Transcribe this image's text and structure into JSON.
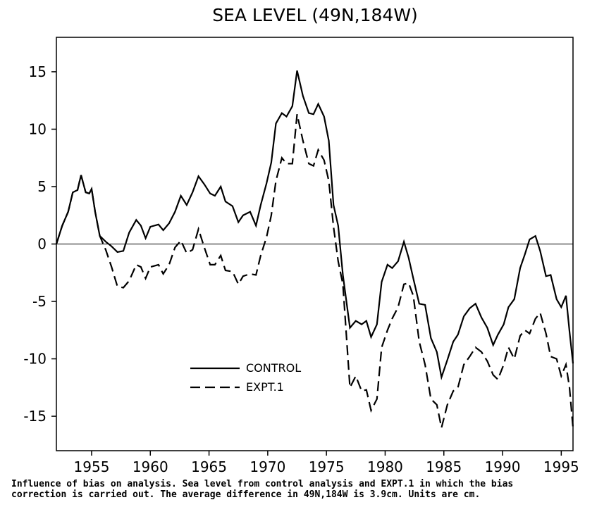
{
  "chart_data": {
    "type": "line",
    "title": "SEA LEVEL (49N,184W)",
    "caption": [
      "Influence of bias on analysis. Sea level from control analysis and EXPT.1 in which the bias",
      "correction is carried out. The average difference in 49N,184W is 3.9cm. Units are cm."
    ],
    "x": [
      1952.0,
      1952.5,
      1953.0,
      1953.4,
      1953.8,
      1954.1,
      1954.5,
      1954.8,
      1955.0,
      1955.3,
      1955.7,
      1956.2,
      1956.7,
      1957.2,
      1957.7,
      1958.2,
      1958.8,
      1959.2,
      1959.6,
      1960.0,
      1960.7,
      1961.1,
      1961.6,
      1962.1,
      1962.6,
      1963.1,
      1963.6,
      1964.1,
      1964.6,
      1965.1,
      1965.5,
      1966.0,
      1966.4,
      1967.0,
      1967.5,
      1967.9,
      1968.5,
      1969.0,
      1969.4,
      1969.9,
      1970.3,
      1970.7,
      1971.2,
      1971.6,
      1972.1,
      1972.5,
      1973.0,
      1973.5,
      1973.9,
      1974.3,
      1974.8,
      1975.2,
      1975.6,
      1976.0,
      1976.4,
      1977.0,
      1977.5,
      1978.0,
      1978.4,
      1978.8,
      1979.3,
      1979.7,
      1980.2,
      1980.6,
      1981.1,
      1981.6,
      1982.0,
      1982.4,
      1982.9,
      1983.4,
      1983.9,
      1984.4,
      1984.8,
      1985.3,
      1985.8,
      1986.2,
      1986.7,
      1987.2,
      1987.7,
      1988.2,
      1988.7,
      1989.2,
      1989.6,
      1990.1,
      1990.5,
      1991.0,
      1991.5,
      1991.9,
      1992.3,
      1992.8,
      1993.2,
      1993.7,
      1994.1,
      1994.6,
      1995.0,
      1995.4,
      1995.7,
      1996.0
    ],
    "series": [
      {
        "name": "CONTROL",
        "color": "#000000",
        "line_style": "solid",
        "values": [
          0,
          1.6,
          2.8,
          4.5,
          4.7,
          6.0,
          4.5,
          4.4,
          4.8,
          2.8,
          0.7,
          0.2,
          -0.2,
          -0.7,
          -0.6,
          1.0,
          2.1,
          1.6,
          0.5,
          1.5,
          1.7,
          1.2,
          1.8,
          2.8,
          4.2,
          3.4,
          4.5,
          5.9,
          5.2,
          4.4,
          4.2,
          5.0,
          3.7,
          3.3,
          1.9,
          2.5,
          2.8,
          1.6,
          3.4,
          5.3,
          7.1,
          10.5,
          11.4,
          11.1,
          12.0,
          15.1,
          12.9,
          11.4,
          11.3,
          12.2,
          11.1,
          9.0,
          3.4,
          1.6,
          -2.7,
          -7.3,
          -6.7,
          -7.0,
          -6.7,
          -8.1,
          -7.0,
          -3.3,
          -1.8,
          -2.1,
          -1.5,
          0.2,
          -1.2,
          -3.0,
          -5.2,
          -5.3,
          -8.2,
          -9.4,
          -11.6,
          -10.1,
          -8.5,
          -7.9,
          -6.3,
          -5.6,
          -5.2,
          -6.4,
          -7.3,
          -8.8,
          -7.9,
          -7.0,
          -5.5,
          -4.8,
          -2.1,
          -0.9,
          0.4,
          0.7,
          -0.6,
          -2.8,
          -2.7,
          -4.8,
          -5.5,
          -4.5,
          -7.6,
          -10.4
        ]
      },
      {
        "name": "EXPT.1",
        "color": "#000000",
        "line_style": "dashed",
        "values": [
          0,
          1.6,
          2.8,
          4.5,
          4.7,
          6.0,
          4.5,
          4.4,
          4.8,
          2.8,
          0.7,
          -0.5,
          -2,
          -3.7,
          -3.8,
          -3.2,
          -1.8,
          -2.0,
          -3.0,
          -2.0,
          -1.8,
          -2.6,
          -1.8,
          -0.3,
          0.3,
          -0.8,
          -0.5,
          1.3,
          -0.3,
          -1.8,
          -1.8,
          -1.0,
          -2.3,
          -2.4,
          -3.5,
          -2.8,
          -2.6,
          -2.7,
          -1.0,
          0.6,
          2.5,
          5.5,
          7.5,
          7.0,
          7.0,
          11.3,
          9,
          7.0,
          6.8,
          8.2,
          7.3,
          5.5,
          1.5,
          -1.5,
          -3.5,
          -12.5,
          -11.5,
          -12.8,
          -12.7,
          -14.5,
          -13.5,
          -9,
          -7.5,
          -6.5,
          -5.5,
          -3.5,
          -3.4,
          -4.5,
          -8.5,
          -10.5,
          -13.5,
          -14.0,
          -16.0,
          -14.0,
          -12.8,
          -12.5,
          -10.5,
          -9.8,
          -9.0,
          -9.4,
          -10.2,
          -11.4,
          -11.8,
          -10.5,
          -9.0,
          -10.0,
          -8.0,
          -7.5,
          -7.8,
          -6.5,
          -6.0,
          -7.8,
          -9.8,
          -10.0,
          -11.5,
          -10.5,
          -12.5,
          -16.0
        ]
      }
    ],
    "xlim": [
      1952,
      1996
    ],
    "ylim": [
      -18,
      18
    ],
    "xticks": [
      1955,
      1960,
      1965,
      1970,
      1975,
      1980,
      1985,
      1990,
      1995
    ],
    "yticks": [
      -15,
      -10,
      -5,
      0,
      5,
      10,
      15
    ],
    "zero_line": true,
    "legend": "lower center"
  }
}
